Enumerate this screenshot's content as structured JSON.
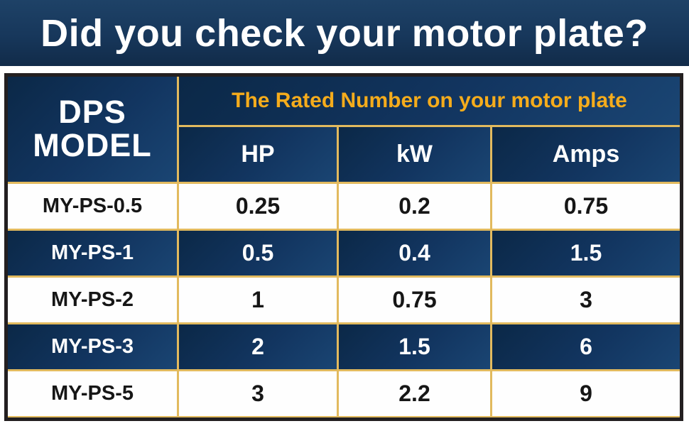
{
  "banner": {
    "title": "Did you check your motor plate?"
  },
  "colors": {
    "navy_dark": "#112b49",
    "navy_cell": "#123560",
    "gold_text": "#f5ac1c",
    "gold_border": "#e2ba5e",
    "outer_border": "#231f20"
  },
  "table": {
    "model_header": {
      "line1": "DPS",
      "line2": "MODEL"
    },
    "rated_header": "The Rated Number on your motor plate",
    "columns": [
      "HP",
      "kW",
      "Amps"
    ],
    "rows": [
      {
        "model": "MY-PS-0.5",
        "hp": "0.25",
        "kw": "0.2",
        "amps": "0.75"
      },
      {
        "model": "MY-PS-1",
        "hp": "0.5",
        "kw": "0.4",
        "amps": "1.5"
      },
      {
        "model": "MY-PS-2",
        "hp": "1",
        "kw": "0.75",
        "amps": "3"
      },
      {
        "model": "MY-PS-3",
        "hp": "2",
        "kw": "1.5",
        "amps": "6"
      },
      {
        "model": "MY-PS-5",
        "hp": "3",
        "kw": "2.2",
        "amps": "9"
      }
    ]
  }
}
